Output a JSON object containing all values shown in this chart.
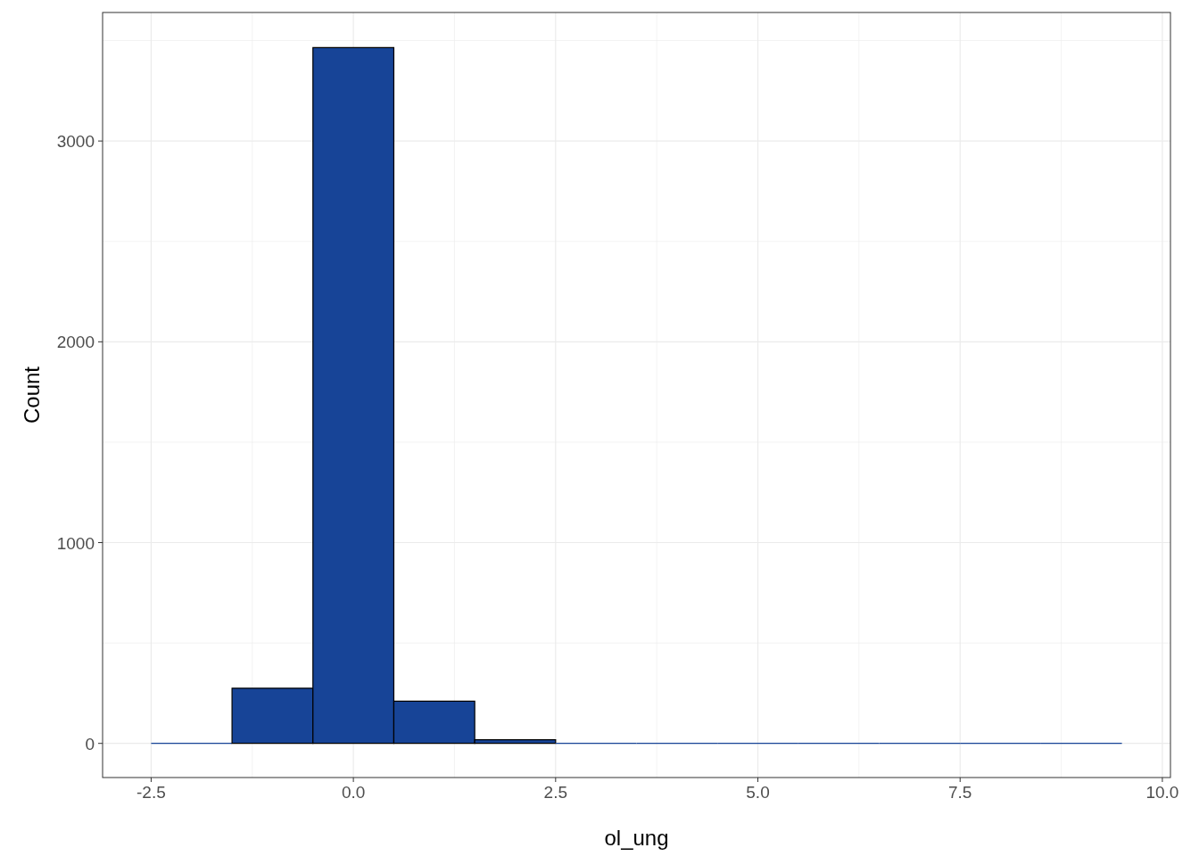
{
  "chart_data": {
    "type": "histogram",
    "xlabel": "ol_ung",
    "ylabel": "Count",
    "bins": [
      -2.5,
      -1.5,
      -0.5,
      0.5,
      1.5,
      2.5,
      3.5,
      4.5,
      5.5,
      6.5,
      7.5,
      8.5,
      9.5
    ],
    "values": [
      0,
      275,
      3465,
      210,
      18,
      0,
      0,
      0,
      0,
      0,
      0,
      0
    ],
    "color": "#174497",
    "xlim": [
      -3.1,
      10.1
    ],
    "ylim": [
      -170,
      3640
    ],
    "xticks": [
      {
        "value": -2.5,
        "label": "-2.5"
      },
      {
        "value": 0,
        "label": "0.0"
      },
      {
        "value": 2.5,
        "label": "2.5"
      },
      {
        "value": 5,
        "label": "5.0"
      },
      {
        "value": 7.5,
        "label": "7.5"
      },
      {
        "value": 10,
        "label": "10.0"
      }
    ],
    "yticks": [
      0,
      1000,
      2000,
      3000
    ],
    "grid": true
  }
}
